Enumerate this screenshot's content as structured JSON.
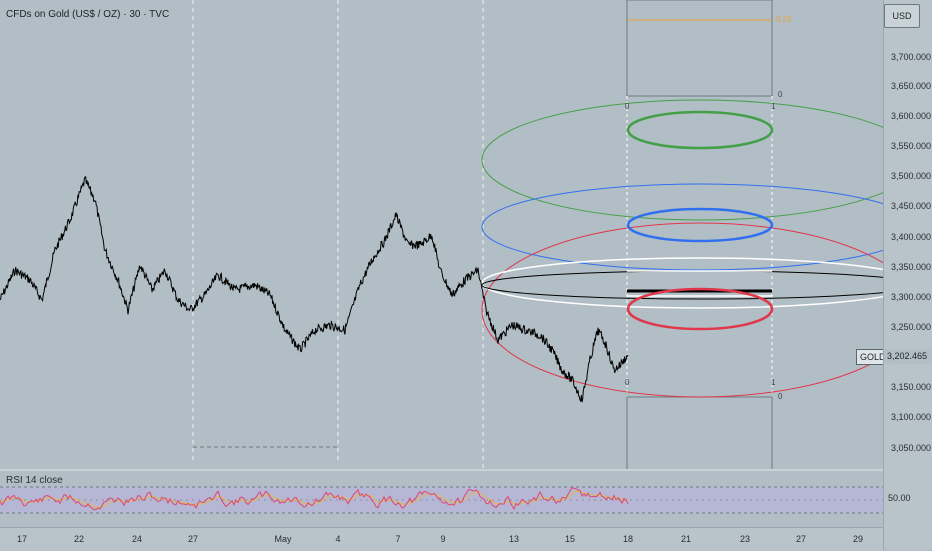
{
  "chart_title": "CFDs on Gold (US$ / OZ) · 30 · TVC",
  "currency_button": "USD",
  "symbol_tag": "GOLD",
  "last_price": "3,202.465",
  "rsi_title": "RSI 14 close",
  "rsi_value": "50.00",
  "price_axis_labels": [
    "3,700.000",
    "3,650.000",
    "3,600.000",
    "3,550.000",
    "3,500.000",
    "3,450.000",
    "3,400.000",
    "3,350.000",
    "3,300.000",
    "3,250.000",
    "3,150.000",
    "3,100.000",
    "3,050.000"
  ],
  "time_axis_labels": [
    "17",
    "22",
    "24",
    "27",
    "May",
    "4",
    "7",
    "9",
    "13",
    "15",
    "18",
    "21",
    "23",
    "27",
    "29"
  ],
  "fib_labels": {
    "top_level": "0.25",
    "top_zero_left": "0",
    "top_one_right": "1",
    "top_box_zero": "0",
    "bottom_zero_left": "0",
    "bottom_one_right": "1",
    "bottom_box_zero": "0"
  },
  "colors": {
    "background": "#b2bec5",
    "price_line": "#000000",
    "green_ellipse": "#43a047",
    "blue_ellipse": "#2f6ff0",
    "red_ellipse": "#e0374a",
    "white_ellipse": "#ffffff",
    "black_ellipse": "#000000",
    "rsi_line": "#e0456e",
    "rsi_ma": "#e6b84a",
    "rsi_band": "#b9b1e0",
    "fib_orange": "#e6a23c"
  }
}
